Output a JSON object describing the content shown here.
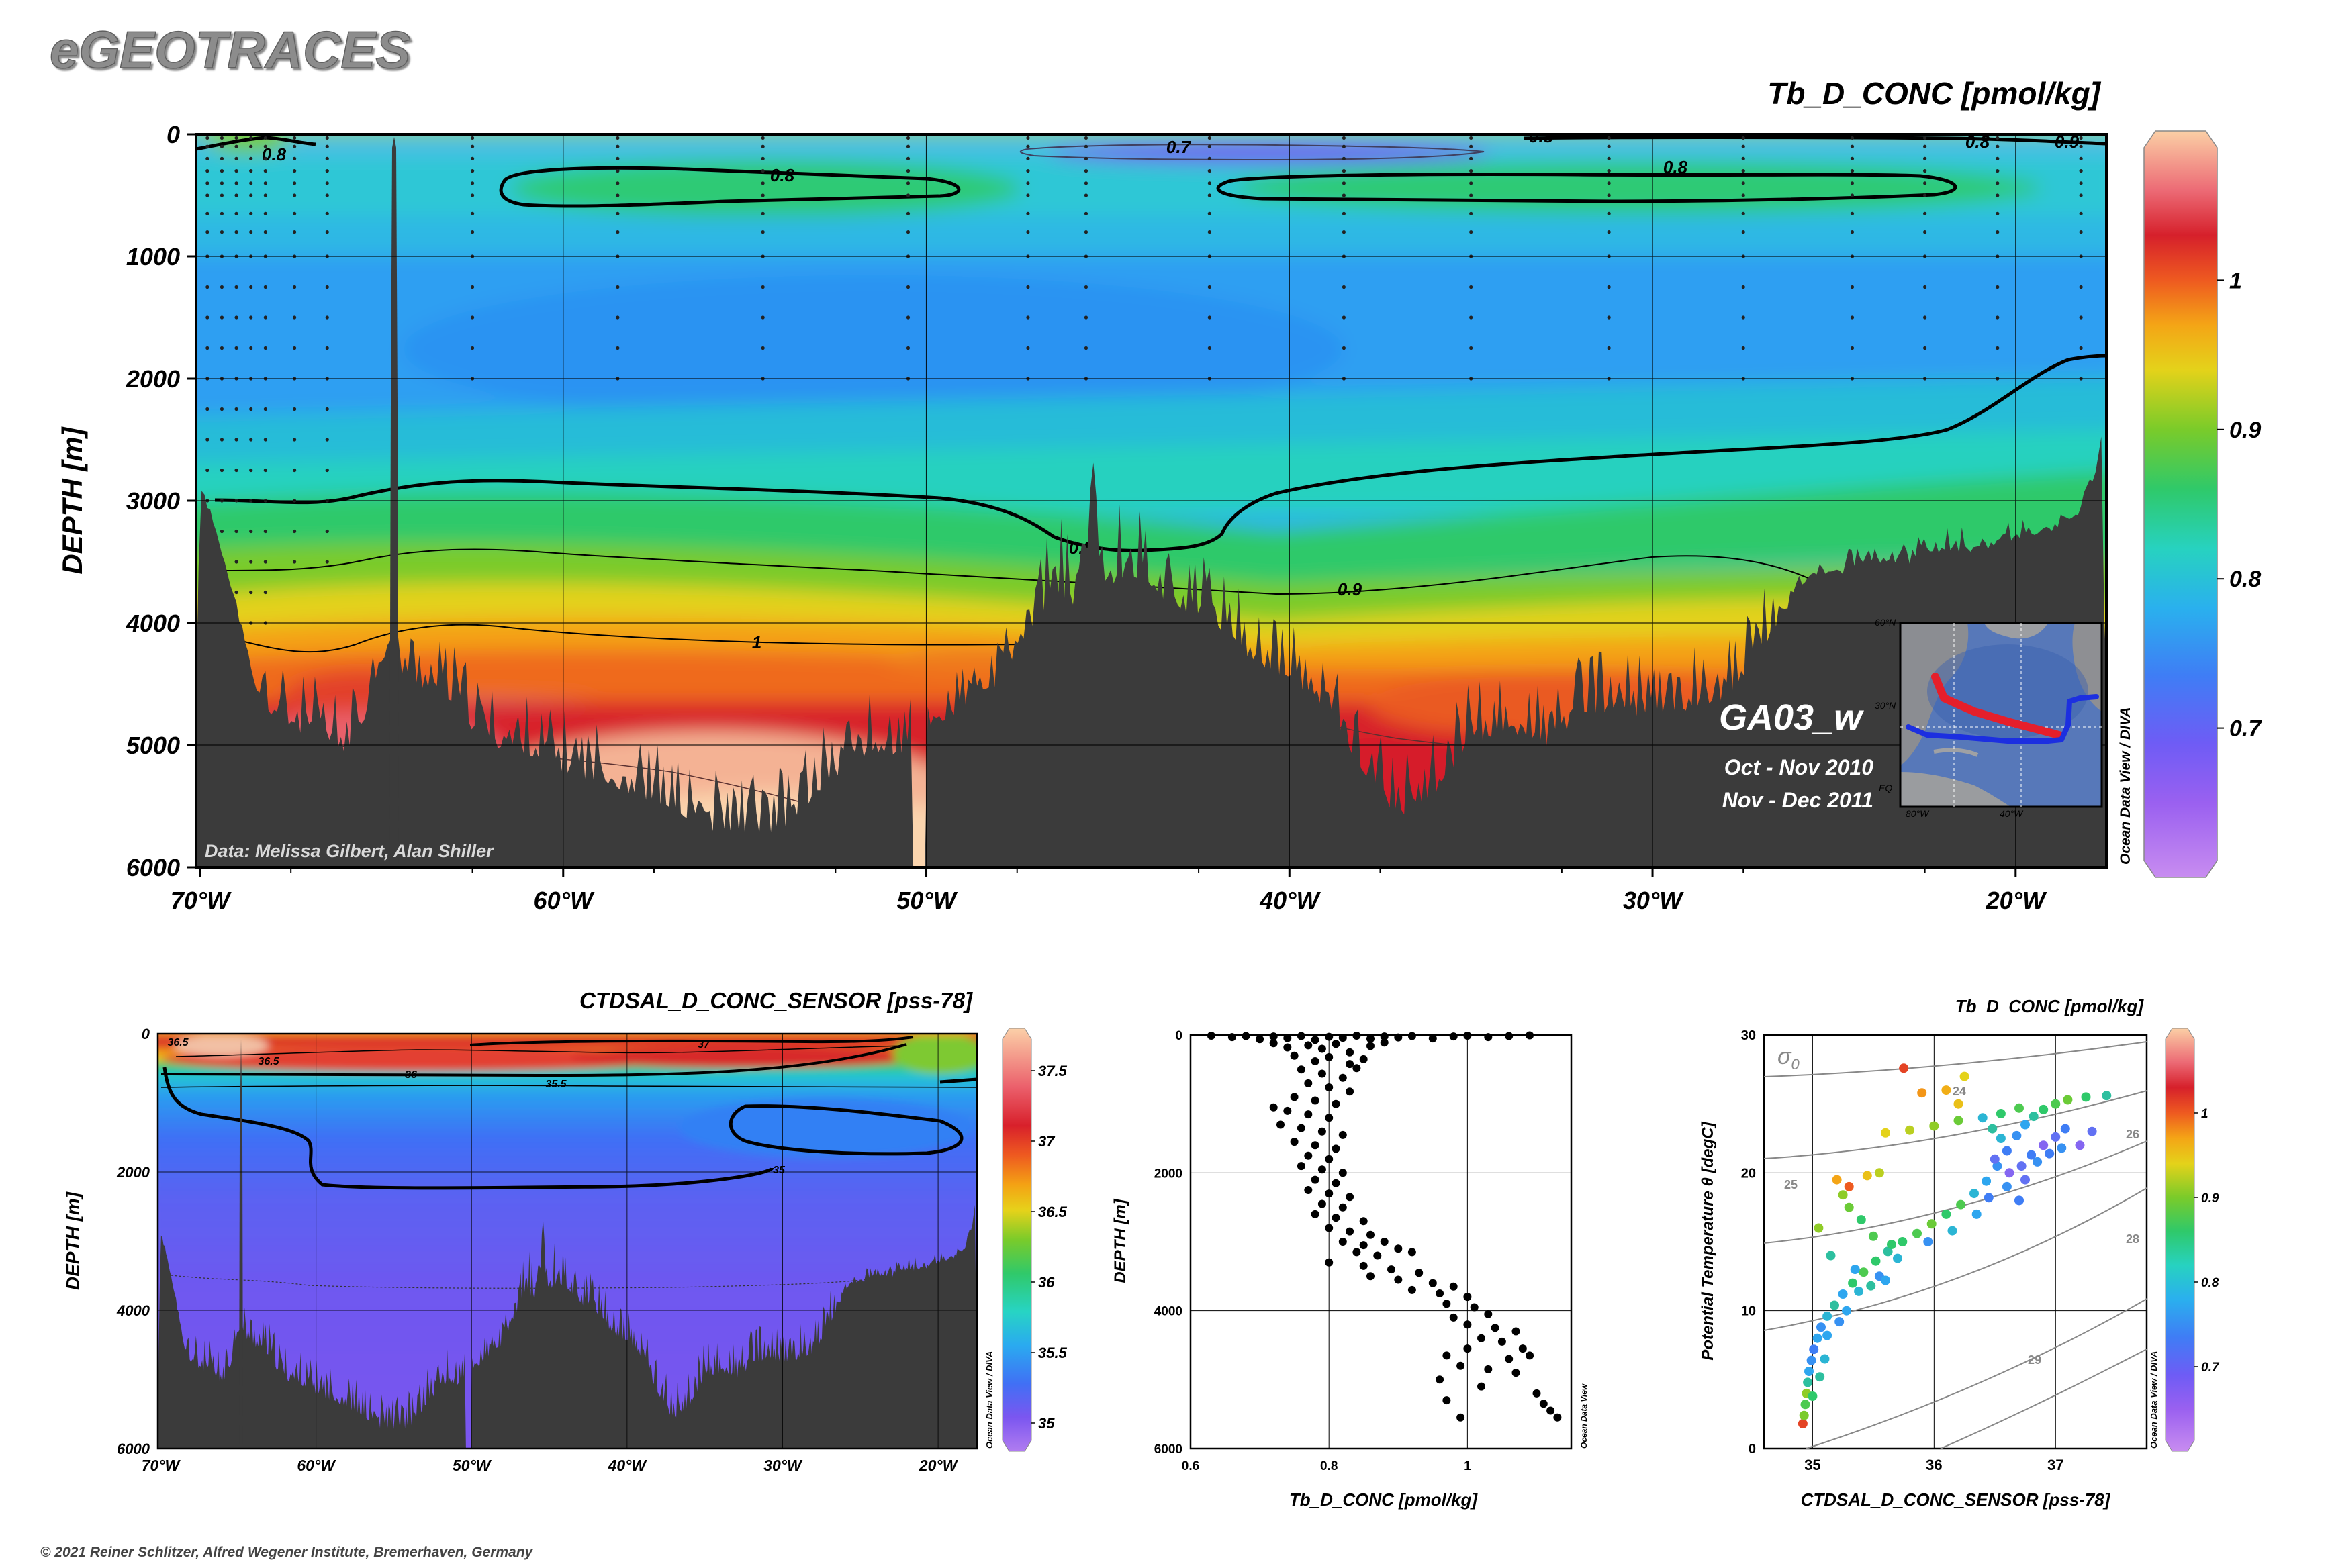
{
  "header": {
    "app_title": "eGEOTRACES",
    "copyright": "© 2021 Reiner Schlitzer, Alfred Wegener Institute, Bremerhaven, Germany",
    "odv_diva_credit": "Ocean Data View / DIVA",
    "odv_credit": "Ocean Data View"
  },
  "colors": {
    "scale": [
      "#b57cf0",
      "#7f55f0",
      "#3f6ff5",
      "#2aa5f0",
      "#27d4c4",
      "#30c96a",
      "#79cc2a",
      "#e6d21a",
      "#f4a214",
      "#ee5a20",
      "#d8202b",
      "#eb5f6b",
      "#f7b595",
      "#fbd6b0"
    ],
    "topography": "#3b3b3b",
    "cruise_track_west": "#e51f2b",
    "cruise_track_east": "#1c2fe0"
  },
  "chart_data": [
    {
      "id": "main-section",
      "type": "heatmap",
      "title": "Tb_D_CONC [pmol/kg]",
      "ylabel": "DEPTH [m]",
      "xlabel": "",
      "x_ticks": [
        "70°W",
        "60°W",
        "50°W",
        "40°W",
        "30°W",
        "20°W"
      ],
      "x_tick_values": [
        -70,
        -60,
        -50,
        -40,
        -30,
        -20
      ],
      "y_ticks": [
        "0",
        "1000",
        "2000",
        "3000",
        "4000",
        "5000",
        "6000"
      ],
      "y_tick_values": [
        0,
        1000,
        2000,
        3000,
        4000,
        5000,
        6000
      ],
      "xlim": [
        -70,
        -17.5
      ],
      "ylim": [
        6000,
        0
      ],
      "colorbar": {
        "ticks": [
          "0.7",
          "0.8",
          "0.9",
          "1"
        ],
        "tick_values": [
          0.7,
          0.8,
          0.9,
          1.0
        ],
        "range": [
          0.6,
          1.1
        ]
      },
      "contour_labels": [
        "0.8",
        "0.8",
        "0.8",
        "0.7",
        "0.8",
        "0.8",
        "0.9",
        "0.8",
        "0.9",
        "1"
      ],
      "data_credit": "Data: Melissa Gilbert, Alan Shiller",
      "section_name": "GA03_w",
      "dates": [
        "Oct - Nov 2010",
        "Nov - Dec 2011"
      ],
      "inset_map": {
        "lat_labels": [
          "60°N",
          "30°N",
          "EQ"
        ],
        "lon_labels": [
          "80°W",
          "40°W"
        ]
      }
    },
    {
      "id": "salinity-section",
      "type": "heatmap",
      "title": "CTDSAL_D_CONC_SENSOR [pss-78]",
      "ylabel": "DEPTH [m]",
      "x_ticks": [
        "70°W",
        "60°W",
        "50°W",
        "40°W",
        "30°W",
        "20°W"
      ],
      "y_ticks": [
        "0",
        "2000",
        "4000",
        "6000"
      ],
      "xlim": [
        -70,
        -17.5
      ],
      "ylim": [
        6000,
        0
      ],
      "colorbar": {
        "ticks": [
          "35",
          "35.5",
          "36",
          "36.5",
          "37",
          "37.5"
        ],
        "tick_values": [
          35,
          35.5,
          36,
          36.5,
          37,
          37.5
        ],
        "range": [
          34.8,
          37.8
        ]
      },
      "contour_labels": [
        "36.5",
        "36.5",
        "37",
        "36",
        "35.5",
        "35"
      ]
    },
    {
      "id": "profile",
      "type": "scatter",
      "title": "",
      "xlabel": "Tb_D_CONC [pmol/kg]",
      "ylabel": "DEPTH [m]",
      "x_ticks": [
        "0.6",
        "0.8",
        "1"
      ],
      "y_ticks": [
        "0",
        "2000",
        "4000",
        "6000"
      ],
      "xlim": [
        0.6,
        1.15
      ],
      "ylim": [
        6000,
        0
      ],
      "points": [
        [
          0.63,
          10
        ],
        [
          0.66,
          30
        ],
        [
          0.68,
          15
        ],
        [
          0.7,
          60
        ],
        [
          0.72,
          20
        ],
        [
          0.74,
          45
        ],
        [
          0.76,
          15
        ],
        [
          0.78,
          70
        ],
        [
          0.8,
          25
        ],
        [
          0.82,
          40
        ],
        [
          0.84,
          10
        ],
        [
          0.86,
          55
        ],
        [
          0.88,
          20
        ],
        [
          0.9,
          35
        ],
        [
          0.92,
          15
        ],
        [
          0.95,
          50
        ],
        [
          0.98,
          20
        ],
        [
          1.0,
          10
        ],
        [
          1.03,
          30
        ],
        [
          1.06,
          15
        ],
        [
          1.09,
          5
        ],
        [
          0.72,
          120
        ],
        [
          0.74,
          180
        ],
        [
          0.77,
          150
        ],
        [
          0.79,
          200
        ],
        [
          0.81,
          130
        ],
        [
          0.83,
          250
        ],
        [
          0.86,
          160
        ],
        [
          0.88,
          110
        ],
        [
          0.75,
          300
        ],
        [
          0.78,
          380
        ],
        [
          0.8,
          320
        ],
        [
          0.83,
          420
        ],
        [
          0.85,
          350
        ],
        [
          0.76,
          500
        ],
        [
          0.79,
          560
        ],
        [
          0.82,
          620
        ],
        [
          0.84,
          480
        ],
        [
          0.77,
          700
        ],
        [
          0.8,
          760
        ],
        [
          0.83,
          820
        ],
        [
          0.75,
          900
        ],
        [
          0.78,
          950
        ],
        [
          0.81,
          1000
        ],
        [
          0.72,
          1050
        ],
        [
          0.74,
          1100
        ],
        [
          0.77,
          1150
        ],
        [
          0.8,
          1200
        ],
        [
          0.73,
          1300
        ],
        [
          0.76,
          1350
        ],
        [
          0.79,
          1400
        ],
        [
          0.82,
          1450
        ],
        [
          0.75,
          1550
        ],
        [
          0.78,
          1600
        ],
        [
          0.81,
          1650
        ],
        [
          0.77,
          1750
        ],
        [
          0.8,
          1800
        ],
        [
          0.76,
          1900
        ],
        [
          0.79,
          1950
        ],
        [
          0.82,
          2000
        ],
        [
          0.78,
          2100
        ],
        [
          0.81,
          2150
        ],
        [
          0.77,
          2250
        ],
        [
          0.8,
          2300
        ],
        [
          0.83,
          2350
        ],
        [
          0.79,
          2450
        ],
        [
          0.82,
          2500
        ],
        [
          0.78,
          2600
        ],
        [
          0.81,
          2650
        ],
        [
          0.85,
          2700
        ],
        [
          0.8,
          2800
        ],
        [
          0.83,
          2850
        ],
        [
          0.86,
          2900
        ],
        [
          0.82,
          3000
        ],
        [
          0.85,
          3050
        ],
        [
          0.88,
          3000
        ],
        [
          0.9,
          3100
        ],
        [
          0.84,
          3150
        ],
        [
          0.87,
          3200
        ],
        [
          0.92,
          3150
        ],
        [
          0.8,
          3300
        ],
        [
          0.85,
          3350
        ],
        [
          0.89,
          3400
        ],
        [
          0.93,
          3450
        ],
        [
          0.86,
          3500
        ],
        [
          0.9,
          3550
        ],
        [
          0.95,
          3600
        ],
        [
          0.98,
          3650
        ],
        [
          0.92,
          3700
        ],
        [
          0.96,
          3750
        ],
        [
          1.0,
          3800
        ],
        [
          0.97,
          3900
        ],
        [
          1.01,
          3950
        ],
        [
          1.03,
          4050
        ],
        [
          0.98,
          4100
        ],
        [
          1.0,
          4200
        ],
        [
          1.04,
          4250
        ],
        [
          1.07,
          4300
        ],
        [
          1.02,
          4400
        ],
        [
          1.05,
          4450
        ],
        [
          1.0,
          4550
        ],
        [
          1.08,
          4550
        ],
        [
          0.97,
          4650
        ],
        [
          1.06,
          4700
        ],
        [
          1.09,
          4650
        ],
        [
          0.99,
          4800
        ],
        [
          1.03,
          4850
        ],
        [
          1.07,
          4900
        ],
        [
          0.96,
          5000
        ],
        [
          1.02,
          5100
        ],
        [
          1.1,
          5200
        ],
        [
          0.97,
          5300
        ],
        [
          1.11,
          5350
        ],
        [
          1.12,
          5450
        ],
        [
          0.99,
          5550
        ],
        [
          1.13,
          5550
        ]
      ]
    },
    {
      "id": "ts-diagram",
      "type": "scatter",
      "title": "Tb_D_CONC [pmol/kg]",
      "xlabel": "CTDSAL_D_CONC_SENSOR [pss-78]",
      "ylabel": "Potential Temperature θ [degC]",
      "x_ticks": [
        "35",
        "36",
        "37"
      ],
      "y_ticks": [
        "0",
        "10",
        "20",
        "30"
      ],
      "xlim": [
        34.6,
        37.75
      ],
      "ylim": [
        0,
        30
      ],
      "isopycnal_symbol": "σ",
      "isopycnal_subscript": "0",
      "isopycnal_labels": [
        "24",
        "25",
        "26",
        "28",
        "29"
      ],
      "colorbar": {
        "ticks": [
          "0.7",
          "0.8",
          "0.9",
          "1"
        ],
        "tick_values": [
          0.7,
          0.8,
          0.9,
          1.0
        ],
        "range": [
          0.6,
          1.1
        ]
      },
      "points": [
        [
          34.92,
          1.8,
          1.02
        ],
        [
          34.93,
          2.4,
          0.85
        ],
        [
          34.94,
          3.2,
          0.82
        ],
        [
          34.95,
          4.0,
          0.86
        ],
        [
          34.96,
          4.8,
          0.78
        ],
        [
          34.97,
          5.6,
          0.74
        ],
        [
          34.99,
          6.4,
          0.72
        ],
        [
          35.01,
          7.2,
          0.7
        ],
        [
          35.04,
          8.0,
          0.74
        ],
        [
          35.07,
          8.8,
          0.72
        ],
        [
          35.12,
          9.6,
          0.76
        ],
        [
          35.18,
          10.4,
          0.78
        ],
        [
          35.25,
          11.2,
          0.74
        ],
        [
          35.33,
          12.0,
          0.8
        ],
        [
          35.42,
          12.8,
          0.82
        ],
        [
          35.52,
          13.6,
          0.8
        ],
        [
          35.62,
          14.3,
          0.78
        ],
        [
          35.74,
          15.0,
          0.8
        ],
        [
          35.86,
          15.6,
          0.82
        ],
        [
          35.98,
          16.3,
          0.84
        ],
        [
          36.1,
          17.0,
          0.8
        ],
        [
          36.22,
          17.7,
          0.82
        ],
        [
          36.33,
          18.5,
          0.76
        ],
        [
          36.43,
          19.4,
          0.74
        ],
        [
          36.52,
          20.5,
          0.72
        ],
        [
          36.6,
          21.6,
          0.7
        ],
        [
          36.68,
          22.7,
          0.72
        ],
        [
          36.75,
          23.5,
          0.74
        ],
        [
          36.82,
          24.1,
          0.78
        ],
        [
          36.9,
          24.6,
          0.8
        ],
        [
          37.0,
          25.0,
          0.82
        ],
        [
          37.1,
          25.3,
          0.84
        ],
        [
          37.25,
          25.5,
          0.8
        ],
        [
          37.42,
          25.6,
          0.78
        ],
        [
          36.5,
          21.0,
          0.68
        ],
        [
          36.62,
          20.0,
          0.66
        ],
        [
          36.72,
          20.5,
          0.68
        ],
        [
          36.8,
          21.3,
          0.7
        ],
        [
          36.9,
          22.0,
          0.66
        ],
        [
          37.0,
          22.6,
          0.68
        ],
        [
          37.08,
          23.2,
          0.7
        ],
        [
          37.2,
          22.0,
          0.66
        ],
        [
          37.3,
          23.0,
          0.68
        ],
        [
          36.4,
          24.0,
          0.76
        ],
        [
          36.55,
          24.3,
          0.8
        ],
        [
          36.7,
          24.7,
          0.82
        ],
        [
          36.2,
          23.8,
          0.84
        ],
        [
          36.0,
          23.4,
          0.86
        ],
        [
          35.8,
          23.1,
          0.88
        ],
        [
          35.6,
          22.9,
          0.9
        ],
        [
          36.2,
          25.0,
          0.92
        ],
        [
          36.1,
          26.0,
          0.94
        ],
        [
          35.9,
          25.8,
          0.96
        ],
        [
          36.25,
          27.0,
          0.9
        ],
        [
          35.75,
          27.6,
          1.02
        ],
        [
          35.3,
          19.0,
          1.0
        ],
        [
          35.2,
          19.5,
          0.95
        ],
        [
          35.45,
          19.8,
          0.92
        ],
        [
          35.05,
          16.0,
          0.86
        ],
        [
          35.15,
          14.0,
          0.78
        ],
        [
          35.35,
          13.0,
          0.74
        ],
        [
          35.55,
          12.5,
          0.72
        ],
        [
          35.7,
          13.8,
          0.76
        ],
        [
          35.95,
          15.0,
          0.72
        ],
        [
          36.15,
          15.8,
          0.76
        ],
        [
          36.35,
          17.0,
          0.74
        ],
        [
          36.45,
          18.2,
          0.7
        ],
        [
          35.1,
          6.5,
          0.76
        ],
        [
          35.06,
          5.2,
          0.78
        ],
        [
          35.0,
          3.8,
          0.8
        ],
        [
          35.12,
          8.2,
          0.74
        ],
        [
          35.22,
          9.2,
          0.72
        ],
        [
          35.28,
          10.0,
          0.74
        ],
        [
          35.38,
          11.4,
          0.76
        ],
        [
          35.48,
          11.8,
          0.78
        ],
        [
          35.6,
          12.2,
          0.74
        ],
        [
          35.65,
          14.8,
          0.8
        ],
        [
          35.5,
          15.4,
          0.82
        ],
        [
          35.4,
          16.6,
          0.8
        ],
        [
          35.3,
          17.5,
          0.84
        ],
        [
          35.25,
          18.4,
          0.86
        ],
        [
          35.55,
          20.0,
          0.88
        ],
        [
          36.6,
          19.0,
          0.72
        ],
        [
          36.7,
          18.0,
          0.7
        ],
        [
          36.75,
          19.5,
          0.68
        ],
        [
          36.85,
          20.8,
          0.72
        ],
        [
          36.95,
          21.4,
          0.7
        ],
        [
          37.05,
          21.8,
          0.72
        ],
        [
          36.55,
          22.5,
          0.76
        ],
        [
          36.48,
          23.2,
          0.78
        ]
      ]
    }
  ]
}
